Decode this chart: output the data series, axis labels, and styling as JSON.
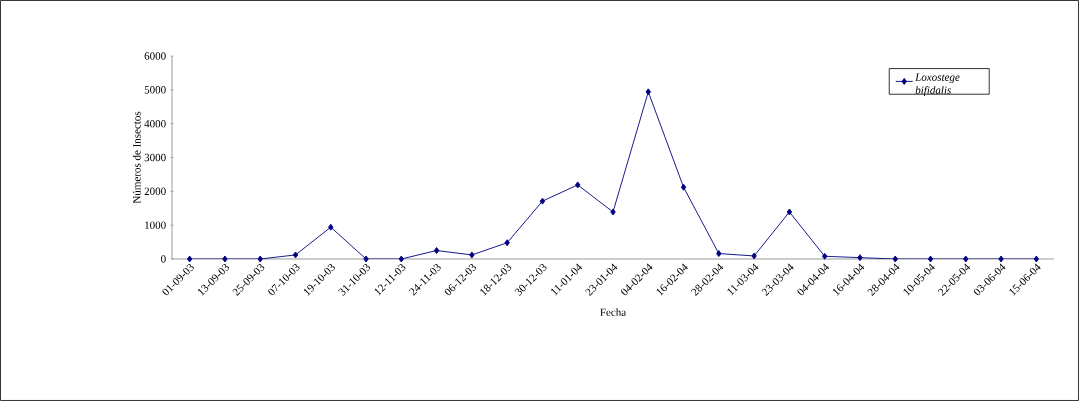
{
  "chart_data": {
    "type": "line",
    "xlabel": "Fecha",
    "ylabel": "Números de Insectos",
    "categories": [
      "01-09-03",
      "13-09-03",
      "25-09-03",
      "07-10-03",
      "19-10-03",
      "31-10-03",
      "12-11-03",
      "24-11-03",
      "06-12-03",
      "18-12-03",
      "30-12-03",
      "11-01-04",
      "23-01-04",
      "04-02-04",
      "16-02-04",
      "28-02-04",
      "11-03-04",
      "23-03-04",
      "04-04-04",
      "16-04-04",
      "28-04-04",
      "10-05-04",
      "22-05-04",
      "03-06-04",
      "15-06-04"
    ],
    "series": [
      {
        "name": "Loxostege bifidalis",
        "color": "#000080",
        "values": [
          0,
          0,
          0,
          120,
          940,
          0,
          0,
          250,
          120,
          480,
          1710,
          2190,
          1390,
          4940,
          2120,
          160,
          90,
          1390,
          80,
          40,
          0,
          0,
          0,
          0,
          0
        ]
      }
    ],
    "ylim": [
      0,
      6000
    ],
    "yticks": [
      0,
      1000,
      2000,
      3000,
      4000,
      5000,
      6000
    ],
    "grid": false,
    "legend": "top right",
    "marker": "diamond",
    "line_style": "solid"
  }
}
